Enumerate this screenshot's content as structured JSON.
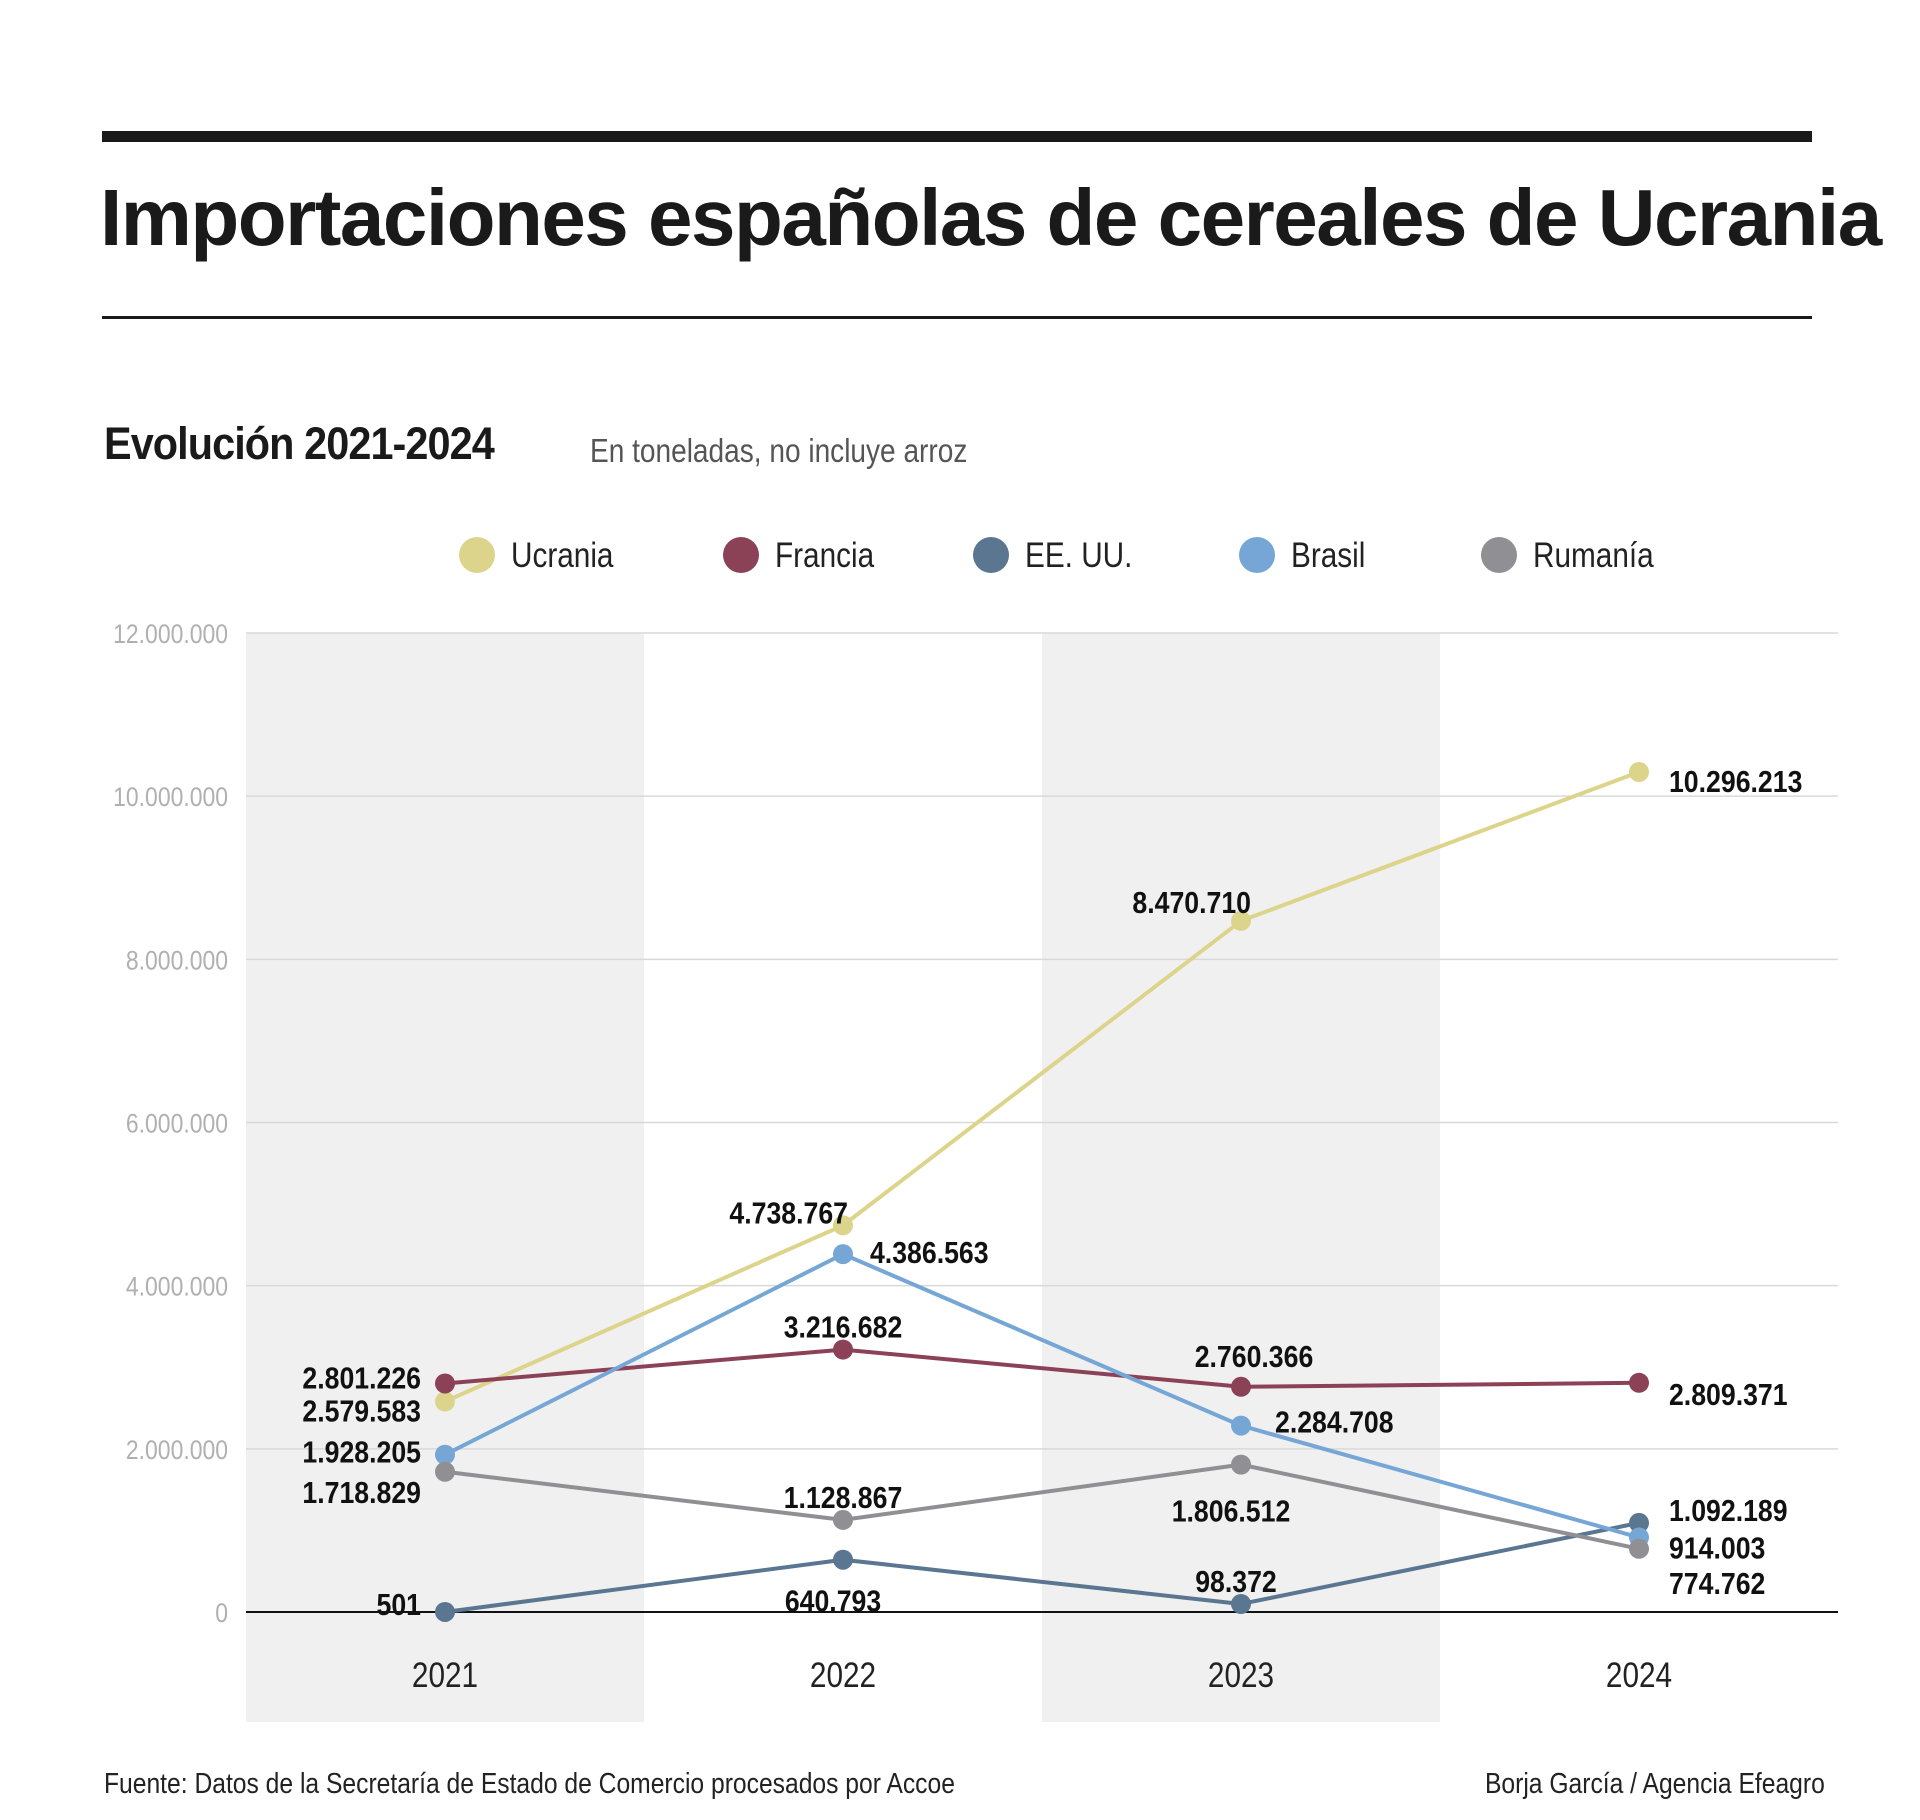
{
  "header": {
    "title": "Importaciones españolas de cereales de Ucrania",
    "subtitle": "Evolución 2021-2024",
    "note": "En toneladas, no incluye arroz"
  },
  "footer": {
    "source": "Fuente: Datos de la Secretaría de Estado de Comercio procesados por Accoe",
    "credit": "Borja García / Agencia Efeagro"
  },
  "chart_data": {
    "type": "line",
    "title": "Evolución 2021-2024",
    "subtitle": "En toneladas, no incluye arroz",
    "xlabel": "",
    "ylabel": "",
    "x": [
      "2021",
      "2022",
      "2023",
      "2024"
    ],
    "ylim": [
      0,
      12000000
    ],
    "yticks": [
      0,
      2000000,
      4000000,
      6000000,
      8000000,
      10000000,
      12000000
    ],
    "ytick_labels": [
      "0",
      "2.000.000",
      "4.000.000",
      "6.000.000",
      "8.000.000",
      "10.000.000",
      "12.000.000"
    ],
    "grid": true,
    "legend_position": "top-center",
    "alternating_bands": true,
    "series": [
      {
        "name": "Ucrania",
        "color": "#DDD48C",
        "values": [
          2579583,
          4738767,
          8470710,
          10296213
        ],
        "labels": [
          "2.579.583",
          "4.738.767",
          "8.470.710",
          "10.296.213"
        ]
      },
      {
        "name": "Francia",
        "color": "#8C4256",
        "values": [
          2801226,
          3216682,
          2760366,
          2809371
        ],
        "labels": [
          "2.801.226",
          "3.216.682",
          "2.760.366",
          "2.809.371"
        ]
      },
      {
        "name": "EE. UU.",
        "color": "#5A7690",
        "values": [
          501,
          640793,
          98372,
          1092189
        ],
        "labels": [
          "501",
          "640.793",
          "98.372",
          "1.092.189"
        ]
      },
      {
        "name": "Brasil",
        "color": "#76A6D6",
        "values": [
          1928205,
          4386563,
          2284708,
          914003
        ],
        "labels": [
          "1.928.205",
          "4.386.563",
          "2.284.708",
          "914.003"
        ]
      },
      {
        "name": "Rumanía",
        "color": "#8F8F94",
        "values": [
          1718829,
          1128867,
          1806512,
          774762
        ],
        "labels": [
          "1.718.829",
          "1.128.867",
          "1.806.512",
          "774.762"
        ]
      }
    ]
  }
}
